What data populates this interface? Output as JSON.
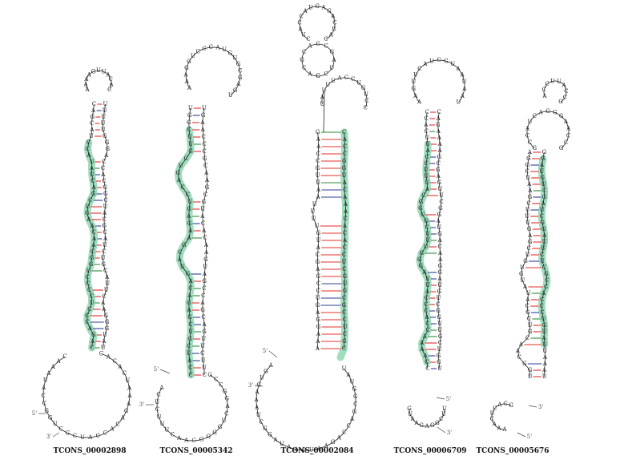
{
  "structures": [
    {
      "label": "TCONS_00002898"
    },
    {
      "label": "TCONS_00005342"
    },
    {
      "label": "TCONS_00002084"
    },
    {
      "label": "TCONS_00006709"
    },
    {
      "label": "TCONS_00005676"
    }
  ],
  "end_labels": {
    "five": "5'",
    "three": "3'"
  },
  "colors": {
    "highlight": "#7fd1a8",
    "backbone": "#222222",
    "pair_gc": "#e0302a",
    "pair_au": "#2b3f9c",
    "pair_gu": "#2e8b3a"
  },
  "nucleotides": [
    "A",
    "C",
    "G",
    "U"
  ]
}
